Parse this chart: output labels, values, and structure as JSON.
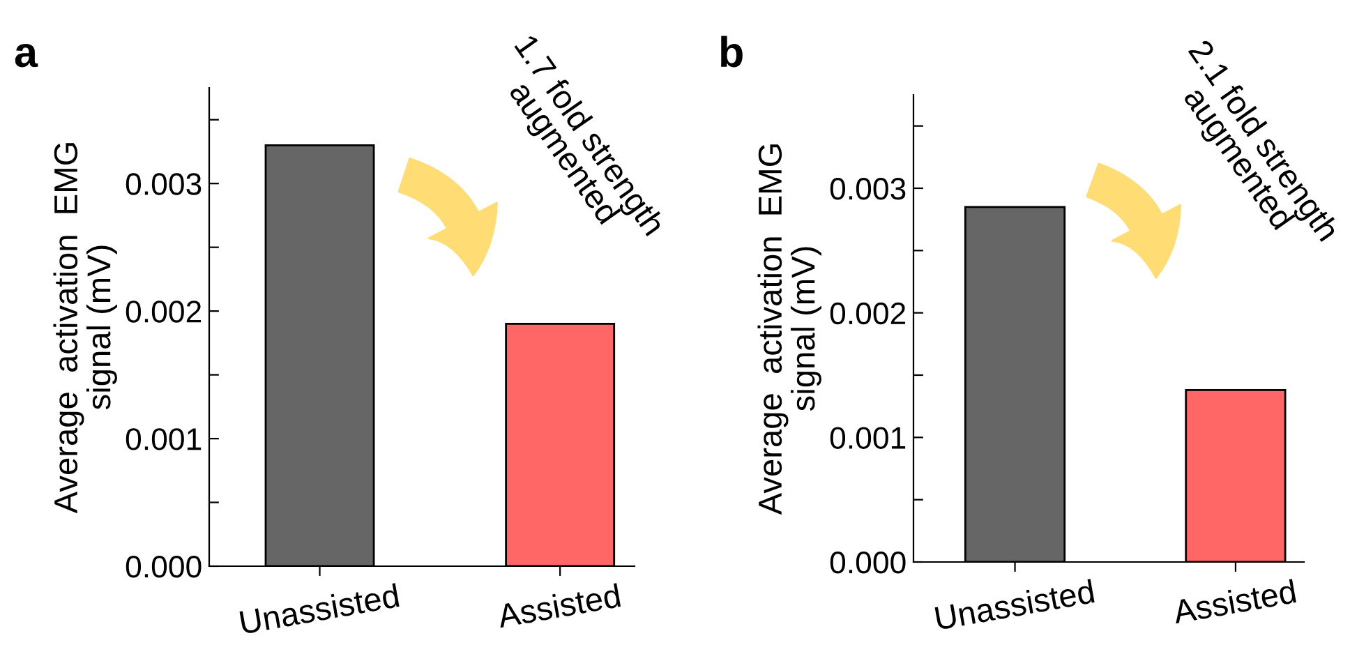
{
  "chart_data": [
    {
      "type": "bar",
      "ylabel": "Average  activation  EMG\nsignal (mV)",
      "categories": [
        "Unassisted",
        "Assisted"
      ],
      "values": [
        0.0033,
        0.0019
      ],
      "colors": [
        "#666666",
        "#ff6666"
      ],
      "ylim": [
        0,
        0.00375
      ],
      "yticks": [
        {
          "value": 0,
          "label": "0.000"
        },
        {
          "value": 0.0005,
          "label": null
        },
        {
          "value": 0.001,
          "label": "0.001"
        },
        {
          "value": 0.0015,
          "label": null
        },
        {
          "value": 0.002,
          "label": "0.002"
        },
        {
          "value": 0.0025,
          "label": null
        },
        {
          "value": 0.003,
          "label": "0.003"
        },
        {
          "value": 0.0035,
          "label": null
        }
      ],
      "grid": false,
      "annotations": [
        "a",
        "1.7 fold strength\naugmented"
      ]
    },
    {
      "type": "bar",
      "ylabel": "Average  activation  EMG\nsignal (mV)",
      "categories": [
        "Unassisted",
        "Assisted"
      ],
      "values": [
        0.00285,
        0.00138
      ],
      "colors": [
        "#666666",
        "#ff6666"
      ],
      "ylim": [
        0,
        0.00375
      ],
      "yticks": [
        {
          "value": 0,
          "label": "0.000"
        },
        {
          "value": 0.0005,
          "label": null
        },
        {
          "value": 0.001,
          "label": "0.001"
        },
        {
          "value": 0.0015,
          "label": null
        },
        {
          "value": 0.002,
          "label": "0.002"
        },
        {
          "value": 0.0025,
          "label": null
        },
        {
          "value": 0.003,
          "label": "0.003"
        },
        {
          "value": 0.0035,
          "label": null
        }
      ],
      "grid": false,
      "annotations": [
        "b",
        "2.1 fold strength\naugmented"
      ]
    }
  ]
}
